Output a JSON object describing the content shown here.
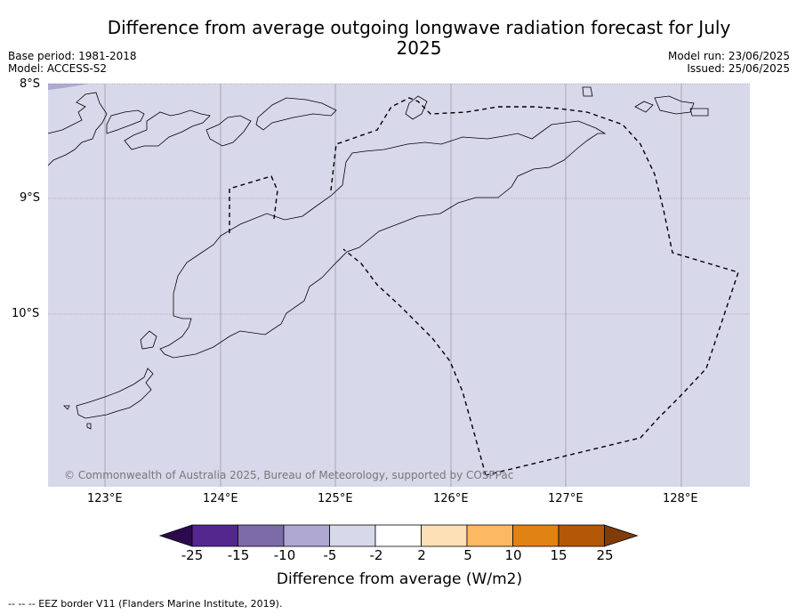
{
  "title": "Difference from average outgoing longwave radiation forecast for July 2025",
  "meta_left": {
    "base_period": "Base period: 1981-2018",
    "model": "Model: ACCESS-S2"
  },
  "meta_right": {
    "model_run": "Model run: 23/06/2025",
    "issued": "Issued: 25/06/2025"
  },
  "latitude_labels": [
    "8°S",
    "9°S",
    "10°S"
  ],
  "longitude_labels": [
    "123°E",
    "124°E",
    "125°E",
    "126°E",
    "127°E",
    "128°E"
  ],
  "copyright": "© Commonwealth of Australia 2025, Bureau of Meteorology, supported by COSPPac",
  "colorbar": {
    "label": "Difference from average (W/m2)",
    "ticks": [
      "-25",
      "-15",
      "-10",
      "-5",
      "-2",
      "2",
      "5",
      "10",
      "15",
      "25"
    ],
    "colors": [
      "#2d0a4e",
      "#54278f",
      "#7d6aa8",
      "#aea8d3",
      "#d8d8eb",
      "#ffffff",
      "#fee0b6",
      "#fdb863",
      "#e08214",
      "#b35806",
      "#7f3b08"
    ]
  },
  "map": {
    "background_color": "#d8d8eb",
    "field_value_class": "-5 to -2"
  },
  "footnote": "--  --  -- EEZ border V11 (Flanders Marine Institute, 2019)."
}
